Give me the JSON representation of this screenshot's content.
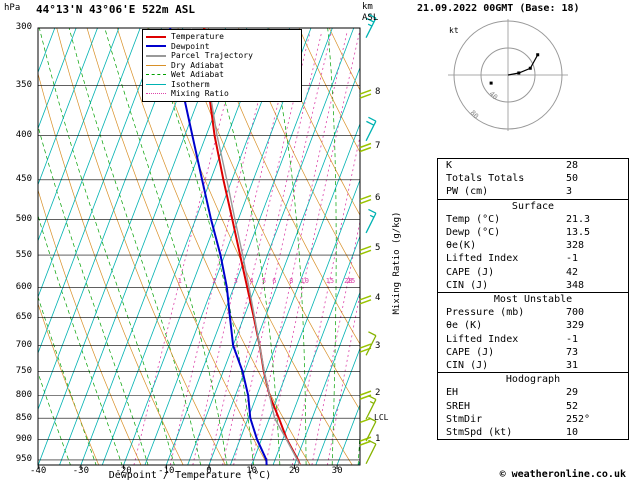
{
  "header": {
    "station": "44°13'N 43°06'E 522m ASL",
    "datetime": "21.09.2022 00GMT (Base: 18)"
  },
  "labels": {
    "pressure_unit": "hPa",
    "km": "km",
    "asl": "ASL",
    "kt": "kt",
    "x_axis": "Dewpoint / Temperature (°C)",
    "mixing_axis": "Mixing Ratio (g/kg)",
    "lcl": "LCL",
    "copyright": "© weatheronline.co.uk"
  },
  "legend": [
    {
      "label": "Temperature",
      "color": "#dd0000",
      "line": "solid"
    },
    {
      "label": "Dewpoint",
      "color": "#0000cc",
      "line": "solid"
    },
    {
      "label": "Parcel Trajectory",
      "color": "#999999",
      "line": "solid"
    },
    {
      "label": "Dry Adiabat",
      "color": "#d89028",
      "line": "solid"
    },
    {
      "label": "Wet Adiabat",
      "color": "#00a000",
      "line": "dashed"
    },
    {
      "label": "Isotherm",
      "color": "#00b2b2",
      "line": "solid"
    },
    {
      "label": "Mixing Ratio",
      "color": "#dd44aa",
      "line": "dotted"
    }
  ],
  "stats": {
    "top": [
      [
        "K",
        "28"
      ],
      [
        "Totals Totals",
        "50"
      ],
      [
        "PW (cm)",
        "3"
      ]
    ],
    "sections": [
      {
        "title": "Surface",
        "rows": [
          [
            "Temp (°C)",
            "21.3"
          ],
          [
            "Dewp (°C)",
            "13.5"
          ],
          [
            "θe(K)",
            "328"
          ],
          [
            "Lifted Index",
            "-1"
          ],
          [
            "CAPE (J)",
            "42"
          ],
          [
            "CIN (J)",
            "348"
          ]
        ]
      },
      {
        "title": "Most Unstable",
        "rows": [
          [
            "Pressure (mb)",
            "700"
          ],
          [
            "θe (K)",
            "329"
          ],
          [
            "Lifted Index",
            "-1"
          ],
          [
            "CAPE (J)",
            "73"
          ],
          [
            "CIN (J)",
            "31"
          ]
        ]
      },
      {
        "title": "Hodograph",
        "rows": [
          [
            "EH",
            "29"
          ],
          [
            "SREH",
            "52"
          ],
          [
            "StmDir",
            "252°"
          ],
          [
            "StmSpd (kt)",
            "10"
          ]
        ]
      }
    ]
  },
  "chart_data": {
    "type": "line",
    "diagram": "skew-t-log-p",
    "title": "44°13'N 43°06'E 522m ASL",
    "x_axis": {
      "label": "Dewpoint / Temperature (°C)",
      "min": -40,
      "max": 35,
      "ticks": [
        -40,
        -30,
        -20,
        -10,
        0,
        10,
        20,
        30
      ]
    },
    "pressure_axis": {
      "unit": "hPa",
      "scale": "log",
      "min": 300,
      "max": 963,
      "ticks": [
        300,
        350,
        400,
        450,
        500,
        550,
        600,
        650,
        700,
        750,
        800,
        850,
        900,
        950
      ]
    },
    "altitude_axis": {
      "unit": "km ASL",
      "ticks": [
        1,
        2,
        3,
        4,
        5,
        6,
        7,
        8
      ],
      "lcl_pressure": 855
    },
    "mixing_ratio_labels": [
      1,
      2,
      3,
      4,
      5,
      6,
      8,
      10,
      15,
      20,
      25
    ],
    "series": [
      {
        "name": "Temperature",
        "color": "#dd0000",
        "width": 2,
        "pressure": [
          963,
          950,
          900,
          850,
          800,
          750,
          700,
          650,
          600,
          550,
          500,
          450,
          400,
          350,
          300
        ],
        "temp": [
          21.3,
          20.4,
          16.0,
          12.2,
          8.0,
          4.5,
          1.2,
          -2.6,
          -6.8,
          -11.4,
          -16.4,
          -22.0,
          -28.0,
          -34.0,
          -40.0
        ]
      },
      {
        "name": "Dewpoint",
        "color": "#0000cc",
        "width": 2,
        "pressure": [
          963,
          950,
          900,
          850,
          800,
          750,
          700,
          650,
          600,
          550,
          500,
          450,
          400,
          350,
          300
        ],
        "temp": [
          13.5,
          13.0,
          9.0,
          5.5,
          3.0,
          -0.5,
          -5.0,
          -8.2,
          -11.6,
          -16.0,
          -21.4,
          -27.0,
          -33.2,
          -40.2,
          -48.0
        ]
      },
      {
        "name": "Parcel Trajectory",
        "color": "#999999",
        "width": 1.4,
        "pressure": [
          963,
          900,
          850,
          800,
          750,
          700,
          650,
          600,
          550,
          500,
          450,
          400,
          350,
          300
        ],
        "temp": [
          21.3,
          15.9,
          11.2,
          8.0,
          4.6,
          1.2,
          -2.4,
          -6.4,
          -10.8,
          -15.8,
          -21.2,
          -27.4,
          -33.8,
          -43.0
        ]
      }
    ],
    "wind_barbs": [
      {
        "pressure": 300,
        "color": "#00b2b2",
        "ticks": 2.5
      },
      {
        "pressure": 395,
        "color": "#00b2b2",
        "ticks": 2
      },
      {
        "pressure": 505,
        "color": "#00b2b2",
        "ticks": 1.5
      },
      {
        "pressure": 700,
        "color": "#86b300",
        "ticks": 1
      },
      {
        "pressure": 830,
        "color": "#86b300",
        "ticks": 1.5
      },
      {
        "pressure": 880,
        "color": "#86b300",
        "ticks": 1
      },
      {
        "pressure": 935,
        "color": "#86b300",
        "ticks": 1
      }
    ],
    "hodograph": {
      "unit": "kt",
      "rings": [
        40,
        80
      ],
      "trace": [
        [
          0,
          0
        ],
        [
          16,
          3
        ],
        [
          33,
          10
        ],
        [
          44,
          30
        ]
      ],
      "dots": [
        [
          16,
          3
        ],
        [
          33,
          10
        ],
        [
          44,
          30
        ],
        [
          -25,
          -12
        ]
      ]
    }
  }
}
